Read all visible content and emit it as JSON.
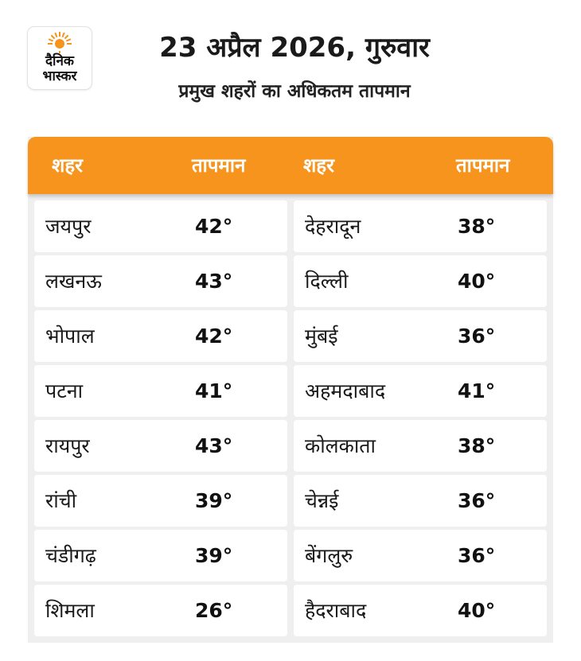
{
  "logo": {
    "line1": "दैनिक",
    "line2": "भास्कर",
    "sun_color": "#f7941d"
  },
  "header": {
    "title": "23 अप्रैल 2026, गुरुवार",
    "subtitle": "प्रमुख शहरों का अधिकतम तापमान"
  },
  "table": {
    "header_color": "#f7941d",
    "columns": [
      "शहर",
      "तापमान",
      "शहर",
      "तापमान"
    ],
    "rows": [
      {
        "city1": "जयपुर",
        "temp1": "42°",
        "city2": "देहरादून",
        "temp2": "38°"
      },
      {
        "city1": "लखनऊ",
        "temp1": "43°",
        "city2": "दिल्ली",
        "temp2": "40°"
      },
      {
        "city1": "भोपाल",
        "temp1": "42°",
        "city2": "मुंबई",
        "temp2": "36°"
      },
      {
        "city1": "पटना",
        "temp1": "41°",
        "city2": "अहमदाबाद",
        "temp2": "41°"
      },
      {
        "city1": "रायपुर",
        "temp1": "43°",
        "city2": "कोलकाता",
        "temp2": "38°"
      },
      {
        "city1": "रांची",
        "temp1": "39°",
        "city2": "चेन्नई",
        "temp2": "36°"
      },
      {
        "city1": "चंडीगढ़",
        "temp1": "39°",
        "city2": "बेंगलुरु",
        "temp2": "36°"
      },
      {
        "city1": "शिमला",
        "temp1": "26°",
        "city2": "हैदराबाद",
        "temp2": "40°"
      }
    ]
  }
}
